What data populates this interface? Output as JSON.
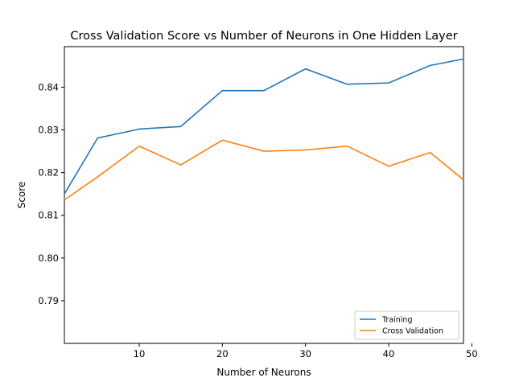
{
  "chart_data": {
    "type": "line",
    "title": "Cross Validation Score vs Number of Neurons in One Hidden Layer",
    "xlabel": "Number of Neurons",
    "ylabel": "Score",
    "xlim": [
      1,
      49
    ],
    "ylim": [
      0.78,
      0.8495
    ],
    "x_ticks": [
      10,
      20,
      30,
      40,
      50
    ],
    "x_tick_labels": [
      "10",
      "20",
      "30",
      "40",
      "50"
    ],
    "y_ticks": [
      0.79,
      0.8,
      0.81,
      0.82,
      0.83,
      0.84
    ],
    "y_tick_labels": [
      "0.79",
      "0.80",
      "0.81",
      "0.82",
      "0.83",
      "0.84"
    ],
    "grid": false,
    "legend_position": "lower-right",
    "x": [
      1,
      5,
      10,
      15,
      20,
      25,
      30,
      35,
      40,
      45,
      49
    ],
    "series": [
      {
        "name": "Training",
        "color": "#1f77b4",
        "values": [
          0.815,
          0.8281,
          0.8302,
          0.8308,
          0.8392,
          0.8392,
          0.8443,
          0.8407,
          0.841,
          0.8451,
          0.8466
        ]
      },
      {
        "name": "Cross Validation",
        "color": "#ff7f0e",
        "values": [
          0.8136,
          0.819,
          0.8262,
          0.8218,
          0.8276,
          0.825,
          0.8253,
          0.8262,
          0.8215,
          0.8247,
          0.8183
        ]
      }
    ]
  }
}
